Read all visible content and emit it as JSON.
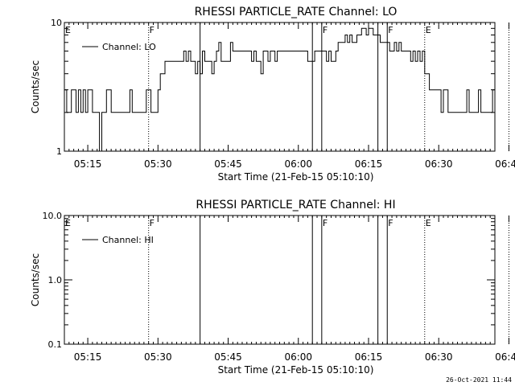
{
  "chart_data": [
    {
      "type": "line",
      "title": "RHESSI PARTICLE_RATE Channel: LO",
      "xlabel": "Start Time (21-Feb-15 05:10:10)",
      "ylabel": "Counts/sec",
      "yscale": "log",
      "ylim": [
        1,
        10
      ],
      "yticks": [
        "1",
        "10"
      ],
      "xlim_minutes_after_0510": [
        0,
        92
      ],
      "xticks": [
        "05:15",
        "05:30",
        "05:45",
        "06:00",
        "06:15",
        "06:30",
        "06:45"
      ],
      "legend": {
        "position": "top-left",
        "entries": [
          "Channel: LO"
        ]
      },
      "series": [
        {
          "name": "Channel: LO",
          "x_start_time": "05:10",
          "step_minutes": 0.5,
          "values": [
            3,
            2,
            2,
            3,
            3,
            2,
            3,
            2,
            3,
            2,
            3,
            3,
            2,
            2,
            2,
            1,
            2,
            2,
            3,
            3,
            2,
            2,
            2,
            2,
            2,
            2,
            2,
            2,
            3,
            2,
            2,
            2,
            2,
            2,
            2,
            3,
            3,
            2,
            2,
            2,
            3,
            4,
            4,
            5,
            5,
            5,
            5,
            5,
            5,
            5,
            5,
            6,
            5,
            6,
            5,
            5,
            4,
            5,
            4,
            6,
            5,
            5,
            5,
            4,
            5,
            6,
            7,
            5,
            5,
            5,
            5,
            7,
            6,
            6,
            6,
            6,
            6,
            6,
            6,
            6,
            5,
            6,
            5,
            5,
            4,
            6,
            6,
            5,
            6,
            6,
            5,
            6,
            6,
            6,
            6,
            6,
            6,
            6,
            6,
            6,
            6,
            6,
            6,
            6,
            5,
            5,
            5,
            6,
            6,
            6,
            6,
            6,
            5,
            6,
            5,
            5,
            6,
            7,
            7,
            7,
            8,
            7,
            8,
            7,
            7,
            8,
            8,
            9,
            9,
            8,
            9,
            9,
            8,
            8,
            8,
            7,
            7,
            7,
            7,
            6,
            6,
            7,
            6,
            7,
            6,
            6,
            6,
            6,
            5,
            6,
            5,
            6,
            5,
            6,
            4,
            4,
            3,
            3,
            3,
            3,
            3,
            2,
            3,
            3,
            2,
            2,
            2,
            2,
            2,
            2,
            2,
            2,
            3,
            2,
            2,
            2,
            2,
            3,
            2,
            2,
            2,
            2,
            2,
            3,
            3,
            3,
            3,
            3
          ]
        }
      ],
      "markers": [
        {
          "label": "E",
          "style": "dotted",
          "time": "05:10"
        },
        {
          "label": "F",
          "style": "dotted",
          "time": "05:28"
        },
        {
          "label": "",
          "style": "solid",
          "time": "05:39"
        },
        {
          "label": "",
          "style": "solid",
          "time": "06:03"
        },
        {
          "label": "F",
          "style": "solid",
          "time": "06:05"
        },
        {
          "label": "",
          "style": "solid",
          "time": "06:17"
        },
        {
          "label": "F",
          "style": "solid",
          "time": "06:19"
        },
        {
          "label": "E",
          "style": "dotted",
          "time": "06:27"
        },
        {
          "label": "",
          "style": "dotted",
          "time": "06:45"
        }
      ]
    },
    {
      "type": "line",
      "title": "RHESSI PARTICLE_RATE Channel: HI",
      "xlabel": "Start Time (21-Feb-15 05:10:10)",
      "ylabel": "Counts/sec",
      "yscale": "log",
      "ylim": [
        0.1,
        10
      ],
      "yticks": [
        "0.1",
        "1.0",
        "10.0"
      ],
      "xlim_minutes_after_0510": [
        0,
        92
      ],
      "xticks": [
        "05:15",
        "05:30",
        "05:45",
        "06:00",
        "06:15",
        "06:30",
        "06:45"
      ],
      "legend": {
        "position": "top-left",
        "entries": [
          "Channel: HI"
        ]
      },
      "series": [
        {
          "name": "Channel: HI",
          "values": []
        }
      ],
      "markers": [
        {
          "label": "E",
          "style": "dotted",
          "time": "05:10"
        },
        {
          "label": "F",
          "style": "dotted",
          "time": "05:28"
        },
        {
          "label": "",
          "style": "solid",
          "time": "05:39"
        },
        {
          "label": "",
          "style": "solid",
          "time": "06:03"
        },
        {
          "label": "F",
          "style": "solid",
          "time": "06:05"
        },
        {
          "label": "",
          "style": "solid",
          "time": "06:17"
        },
        {
          "label": "F",
          "style": "solid",
          "time": "06:19"
        },
        {
          "label": "E",
          "style": "dotted",
          "time": "06:27"
        },
        {
          "label": "",
          "style": "dotted",
          "time": "06:45"
        }
      ]
    }
  ],
  "footer": {
    "timestamp": "26-Oct-2021 11:44"
  },
  "colors": {
    "background": "#ffffff",
    "foreground": "#000000"
  }
}
